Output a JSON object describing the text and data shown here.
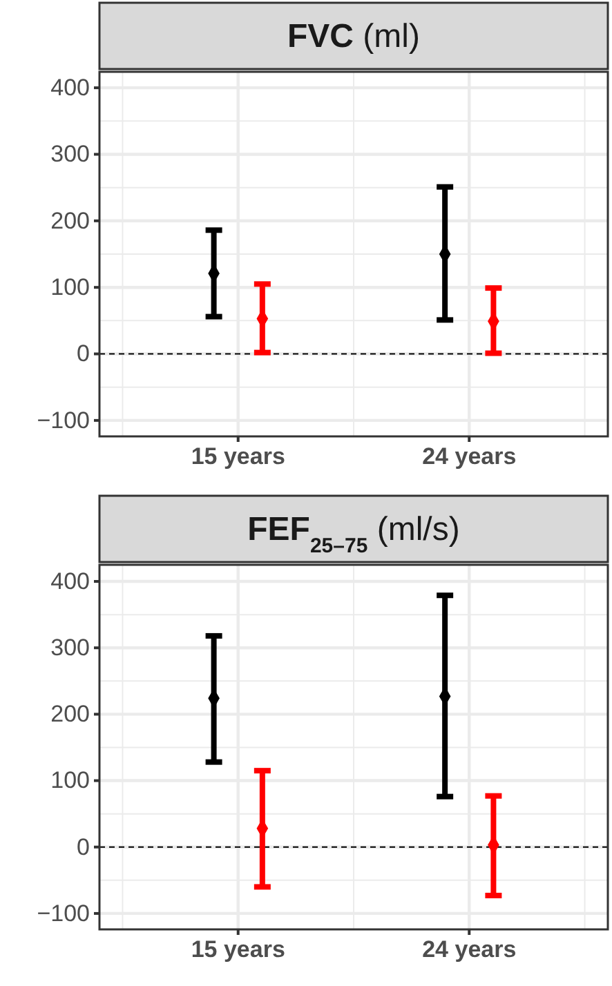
{
  "chart_data": [
    {
      "type": "scatter",
      "title": "FVC (ml)",
      "categories": [
        "15 years",
        "24 years"
      ],
      "series": [
        {
          "color": "#000000",
          "values": [
            121,
            150
          ],
          "errors": [
            [
              56,
              186
            ],
            [
              51,
              251
            ]
          ]
        },
        {
          "color": "#ff0000",
          "values": [
            53,
            49
          ],
          "errors": [
            [
              2,
              105
            ],
            [
              1,
              99
            ]
          ]
        }
      ],
      "ylim": [
        -124,
        424
      ],
      "yticks": [
        {
          "value": -100,
          "label": "−100"
        },
        0,
        100,
        200,
        300,
        400
      ],
      "grid": true,
      "marker": "diamond",
      "ref_lines": [
        {
          "axis": "y",
          "value": 0,
          "line_style": "dashed",
          "color": "#000000"
        }
      ]
    },
    {
      "type": "scatter",
      "title": "FEF$_{25–75}$ (ml/s)",
      "categories": [
        "15 years",
        "24 years"
      ],
      "series": [
        {
          "color": "#000000",
          "values": [
            224,
            227
          ],
          "errors": [
            [
              128,
              318
            ],
            [
              76,
              379
            ]
          ]
        },
        {
          "color": "#ff0000",
          "values": [
            28,
            3
          ],
          "errors": [
            [
              -60,
              115
            ],
            [
              -73,
              77
            ]
          ]
        }
      ],
      "ylim": [
        -124,
        425
      ],
      "yticks": [
        {
          "value": -100,
          "label": "−100"
        },
        0,
        100,
        200,
        300,
        400
      ],
      "grid": true,
      "marker": "diamond",
      "ref_lines": [
        {
          "axis": "y",
          "value": 0,
          "line_style": "dashed",
          "color": "#000000"
        }
      ]
    }
  ]
}
